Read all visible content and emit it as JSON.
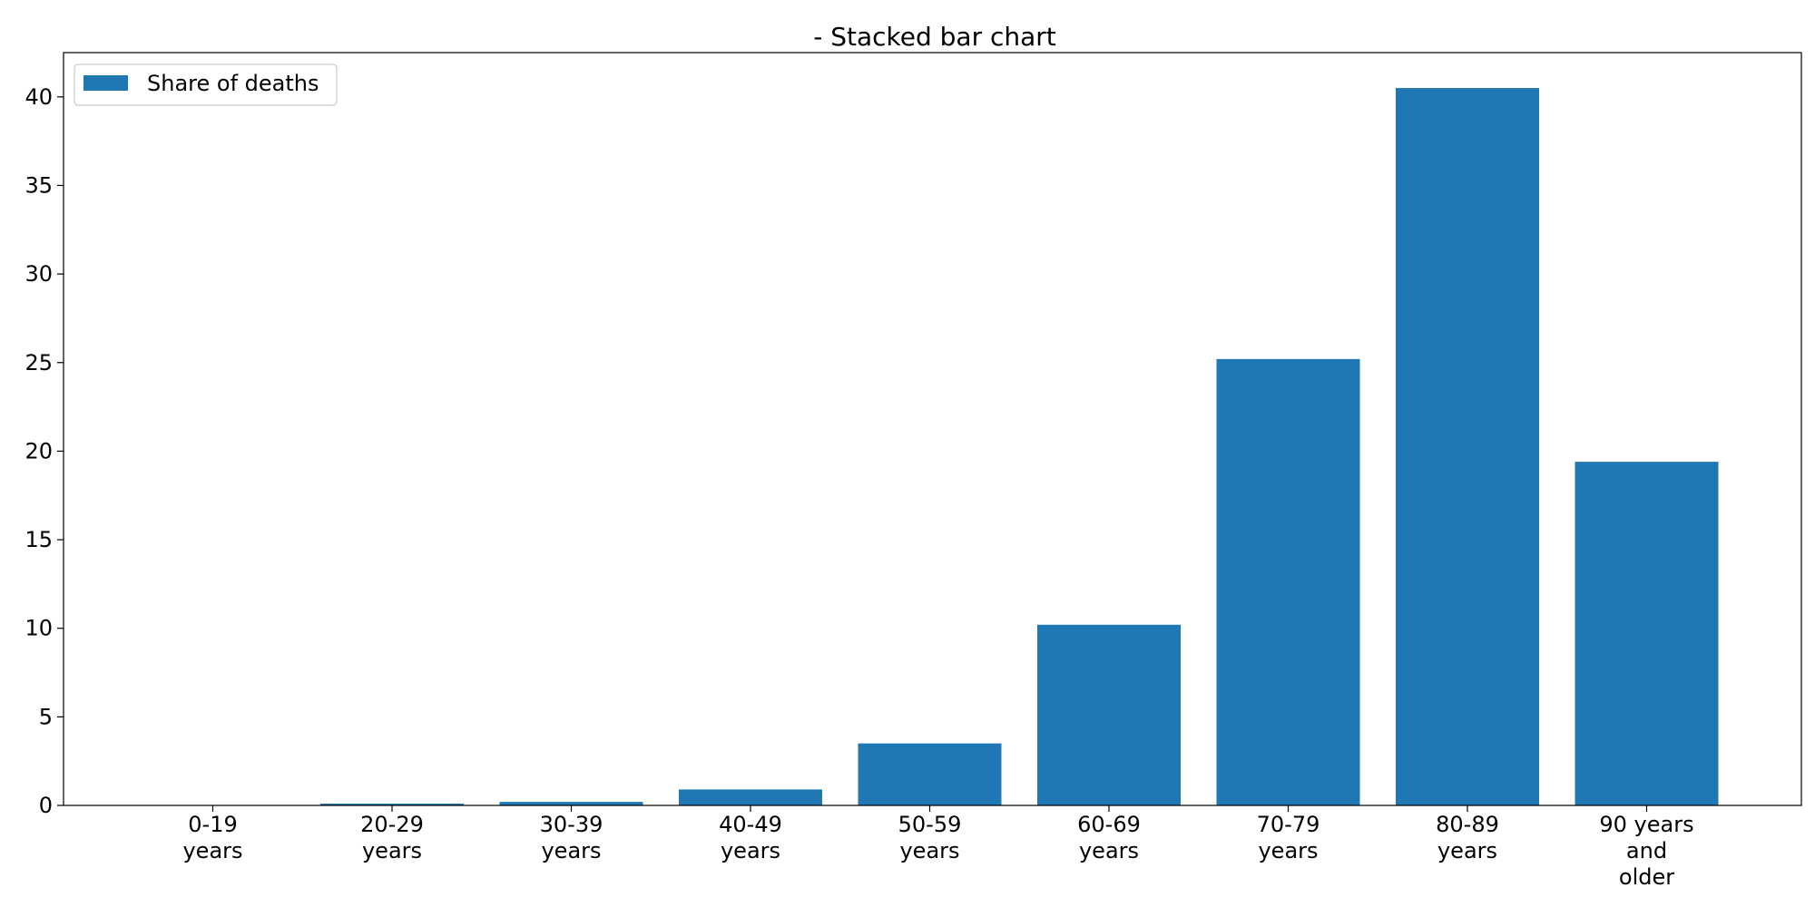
{
  "chart_data": {
    "type": "bar",
    "title": "- Stacked bar chart",
    "xlabel": "",
    "ylabel": "",
    "categories": [
      [
        "0-19",
        "years"
      ],
      [
        "20-29",
        "years"
      ],
      [
        "30-39",
        "years"
      ],
      [
        "40-49",
        "years"
      ],
      [
        "50-59",
        "years"
      ],
      [
        "60-69",
        "years"
      ],
      [
        "70-79",
        "years"
      ],
      [
        "80-89",
        "years"
      ],
      [
        "90 years",
        "and",
        "older"
      ]
    ],
    "series": [
      {
        "name": "Share of deaths",
        "values": [
          0.0,
          0.1,
          0.2,
          0.9,
          3.5,
          10.2,
          25.2,
          40.5,
          19.4
        ]
      }
    ],
    "ylim": [
      0,
      42.5
    ],
    "yticks": [
      0,
      5,
      10,
      15,
      20,
      25,
      30,
      35,
      40
    ],
    "legend_position": "top-left",
    "grid": false,
    "colors": {
      "bar": "#1f77b4",
      "axis": "#000000",
      "legend_border": "#cccccc"
    }
  }
}
